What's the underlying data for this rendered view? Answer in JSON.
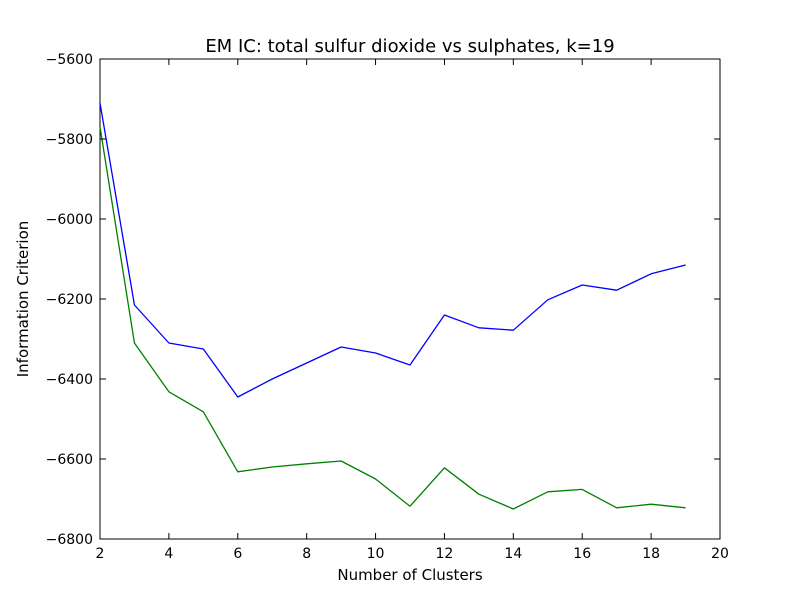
{
  "chart_data": {
    "type": "line",
    "title": "EM IC: total sulfur dioxide vs sulphates, k=19",
    "xlabel": "Number of Clusters",
    "ylabel": "Information Criterion",
    "xlim": [
      2,
      20
    ],
    "ylim": [
      -6800,
      -5600
    ],
    "xticks": [
      "2",
      "4",
      "6",
      "8",
      "10",
      "12",
      "14",
      "16",
      "18",
      "20"
    ],
    "yticks": [
      "−5600",
      "−5800",
      "−6000",
      "−6200",
      "−6400",
      "−6600",
      "−6800"
    ],
    "grid": false,
    "x": [
      2,
      3,
      4,
      5,
      6,
      7,
      8,
      9,
      10,
      11,
      12,
      13,
      14,
      15,
      16,
      17,
      18,
      19
    ],
    "series": [
      {
        "color": "#0000ff",
        "values": [
          -5710,
          -6215,
          -6310,
          -6325,
          -6445,
          -6400,
          -6360,
          -6320,
          -6335,
          -6365,
          -6240,
          -6272,
          -6278,
          -6202,
          -6165,
          -6178,
          -6137,
          -6115
        ]
      },
      {
        "color": "#008000",
        "values": [
          -5770,
          -6310,
          -6432,
          -6482,
          -6632,
          -6620,
          -6612,
          -6605,
          -6650,
          -6718,
          -6622,
          -6688,
          -6725,
          -6682,
          -6676,
          -6722,
          -6713,
          -6722
        ]
      }
    ]
  }
}
